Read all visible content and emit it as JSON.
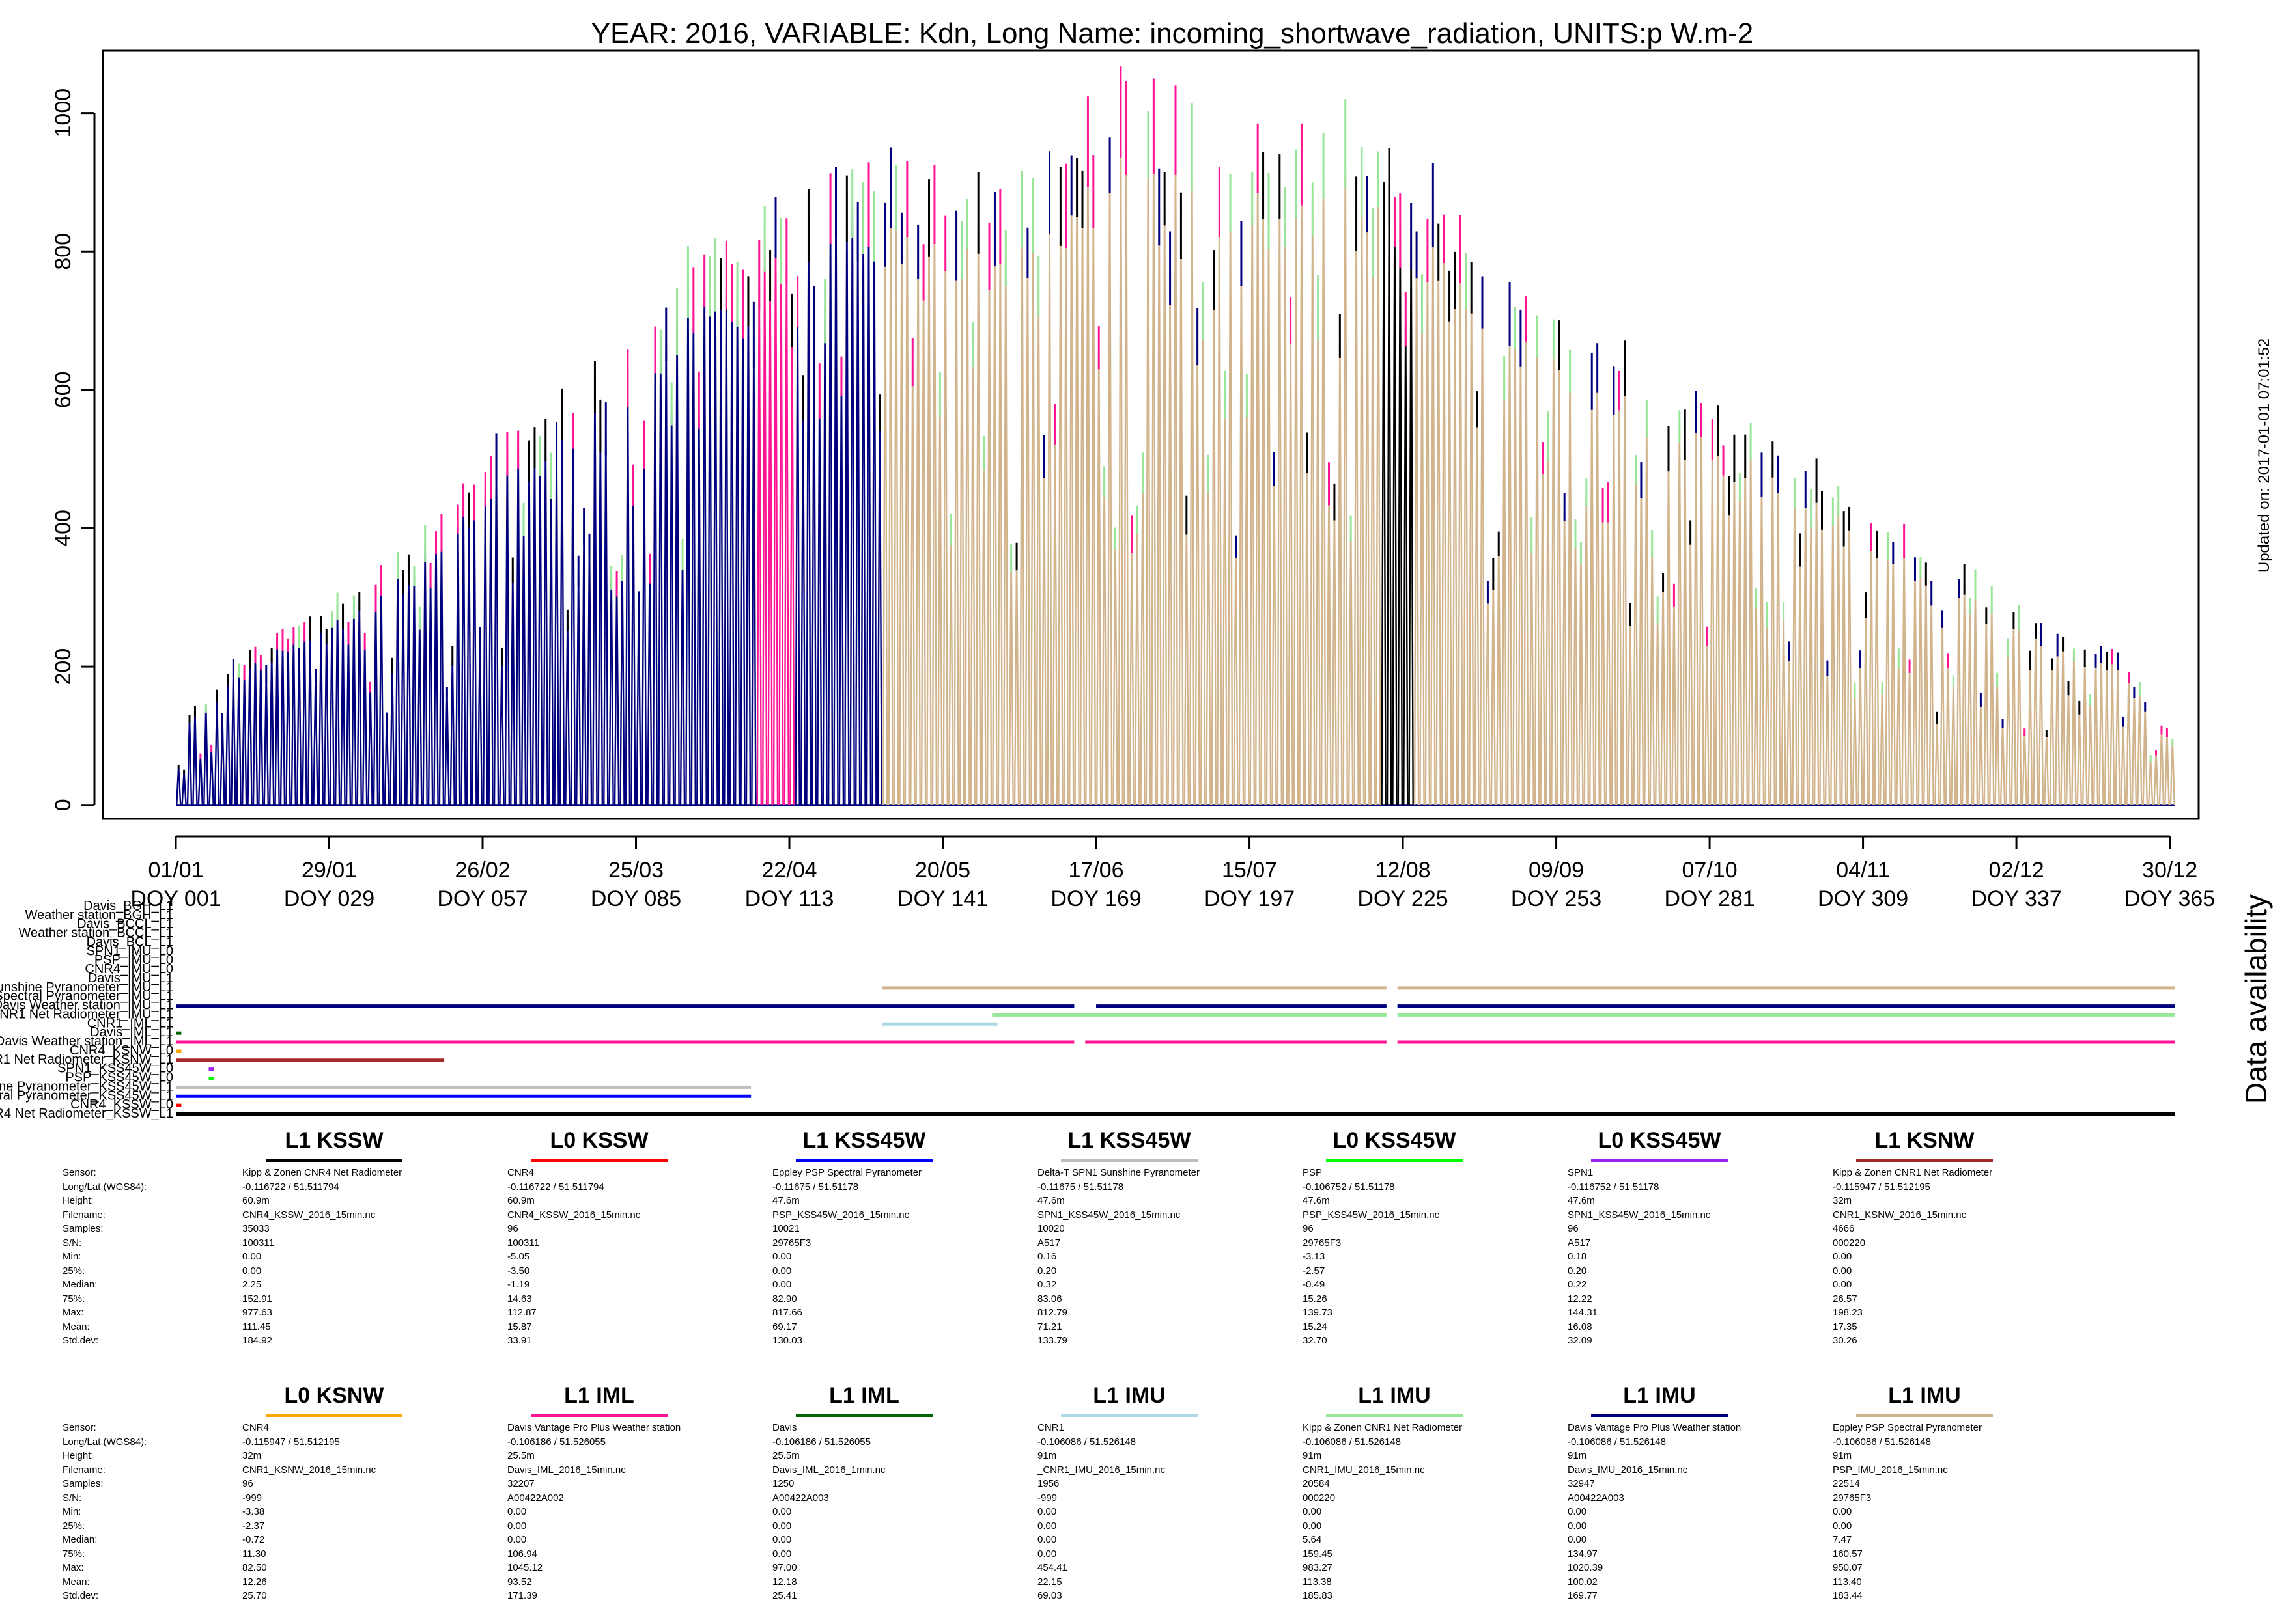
{
  "chart_data": {
    "type": "line",
    "title": "YEAR: 2016, VARIABLE: Kdn, Long Name: incoming_shortwave_radiation, UNITS:p W.m-2",
    "xlabel": "",
    "ylabel": "",
    "xlim": [
      1,
      366
    ],
    "ylim": [
      -20,
      1090
    ],
    "y_ticks": [
      0,
      200,
      400,
      600,
      800,
      1000
    ],
    "x_ticks": [
      {
        "doy": 1,
        "date": "01/01",
        "label": "DOY 001"
      },
      {
        "doy": 29,
        "date": "29/01",
        "label": "DOY 029"
      },
      {
        "doy": 57,
        "date": "26/02",
        "label": "DOY 057"
      },
      {
        "doy": 85,
        "date": "25/03",
        "label": "DOY 085"
      },
      {
        "doy": 113,
        "date": "22/04",
        "label": "DOY 113"
      },
      {
        "doy": 141,
        "date": "20/05",
        "label": "DOY 141"
      },
      {
        "doy": 169,
        "date": "17/06",
        "label": "DOY 169"
      },
      {
        "doy": 197,
        "date": "15/07",
        "label": "DOY 197"
      },
      {
        "doy": 225,
        "date": "12/08",
        "label": "DOY 225"
      },
      {
        "doy": 253,
        "date": "09/09",
        "label": "DOY 253"
      },
      {
        "doy": 281,
        "date": "07/10",
        "label": "DOY 281"
      },
      {
        "doy": 309,
        "date": "04/11",
        "label": "DOY 309"
      },
      {
        "doy": 337,
        "date": "02/12",
        "label": "DOY 337"
      },
      {
        "doy": 365,
        "date": "30/12",
        "label": "DOY 365"
      }
    ],
    "daily_peak_envelope": {
      "doy": [
        1,
        10,
        20,
        31,
        45,
        60,
        75,
        90,
        100,
        110,
        120,
        135,
        150,
        160,
        172,
        185,
        200,
        215,
        225,
        240,
        255,
        270,
        285,
        300,
        315,
        330,
        345,
        355,
        366
      ],
      "value": [
        110,
        200,
        250,
        300,
        380,
        520,
        620,
        740,
        820,
        860,
        920,
        910,
        880,
        900,
        1030,
        990,
        960,
        970,
        920,
        800,
        700,
        630,
        560,
        480,
        400,
        320,
        250,
        220,
        90
      ]
    },
    "series_color_phases": [
      {
        "from": 1,
        "to": 107,
        "color": "#00007f"
      },
      {
        "from": 107,
        "to": 114,
        "color": "#ff1493"
      },
      {
        "from": 114,
        "to": 130,
        "color": "#00007f"
      },
      {
        "from": 130,
        "to": 221,
        "color": "#d2b48c"
      },
      {
        "from": 221,
        "to": 227,
        "color": "#000000"
      },
      {
        "from": 227,
        "to": 366,
        "color": "#d2b48c"
      }
    ],
    "accent_colors": [
      "#ff1493",
      "#00007f",
      "#000000",
      "#98e698"
    ],
    "grid": false,
    "updated_on": "Updated on: 2017-01-01 07:01:52"
  },
  "availability": {
    "title": "Data availability",
    "rows": [
      {
        "label": "Davis_BGH_L1",
        "color": "#000000",
        "segments": []
      },
      {
        "label": "Weather station_BGH_L1",
        "color": "#000000",
        "segments": []
      },
      {
        "label": "Davis_BCCL_L1",
        "color": "#000000",
        "segments": []
      },
      {
        "label": "Weather station_BCCL_L1",
        "color": "#000000",
        "segments": []
      },
      {
        "label": "Davis_BCL_L1",
        "color": "#000000",
        "segments": []
      },
      {
        "label": "SPN1_IMU_L0",
        "color": "#000000",
        "segments": []
      },
      {
        "label": "PSP_IMU_L0",
        "color": "#000000",
        "segments": []
      },
      {
        "label": "CNR4_IMU_L0",
        "color": "#000000",
        "segments": []
      },
      {
        "label": "Davis_IMU_L1",
        "color": "#000000",
        "segments": []
      },
      {
        "label": "Sunshine Pyranometer_IMU_L1",
        "color": "#d2b48c",
        "segments": [
          [
            130,
            222
          ],
          [
            224,
            366
          ]
        ]
      },
      {
        "label": "Spectral Pyranometer_IMU_L1",
        "color": "#000000",
        "segments": []
      },
      {
        "label": "Davis Weather station_IMU_L1",
        "color": "#00007f",
        "segments": [
          [
            1,
            165
          ],
          [
            169,
            222
          ],
          [
            224,
            366
          ]
        ]
      },
      {
        "label": "CNR1 Net Radiometer_IMU_L1",
        "color": "#98e698",
        "segments": [
          [
            150,
            222
          ],
          [
            224,
            366
          ]
        ]
      },
      {
        "label": "CNR1_IML_L1",
        "color": "#add8e6",
        "segments": [
          [
            130,
            151
          ]
        ]
      },
      {
        "label": "Davis_IML_L1",
        "color": "#006400",
        "segments": [
          [
            1,
            2
          ]
        ]
      },
      {
        "label": "Davis Weather station_IML_L1",
        "color": "#ff1493",
        "segments": [
          [
            1,
            165
          ],
          [
            167,
            222
          ],
          [
            224,
            366
          ]
        ]
      },
      {
        "label": "CNR4_KSNW_L0",
        "color": "#ffa500",
        "segments": [
          [
            1,
            2
          ]
        ]
      },
      {
        "label": "CNR1 Net Radiometer_KSNW_L1",
        "color": "#a52a2a",
        "segments": [
          [
            1,
            50
          ]
        ]
      },
      {
        "label": "SPN1_KSS45W_L0",
        "color": "#a020f0",
        "segments": [
          [
            7,
            8
          ]
        ]
      },
      {
        "label": "PSP_KSS45W_L0",
        "color": "#00ff00",
        "segments": [
          [
            7,
            8
          ]
        ]
      },
      {
        "label": "Sunshine Pyranometer_KSS45W_L1",
        "color": "#bebebe",
        "segments": [
          [
            1,
            106
          ]
        ]
      },
      {
        "label": "Spectral Pyranometer_KSS45W_L1",
        "color": "#0000ff",
        "segments": [
          [
            1,
            106
          ]
        ]
      },
      {
        "label": "CNR4_KSSW_L0",
        "color": "#ff0000",
        "segments": [
          [
            1,
            2
          ]
        ]
      },
      {
        "label": "CNR4 Net Radiometer_KSSW_L1",
        "color": "#000000",
        "segments": [
          [
            1,
            366
          ]
        ]
      }
    ]
  },
  "stats": {
    "labels": [
      "Sensor:",
      "Long/Lat (WGS84):",
      "Height:",
      "Filename:",
      "Samples:",
      "S/N:",
      "Min:",
      "25%:",
      "Median:",
      "75%:",
      "Max:",
      "Mean:",
      "Std.dev:"
    ],
    "blocks": [
      {
        "title": "L1 KSSW",
        "color": "#000000",
        "values": [
          "Kipp & Zonen CNR4 Net Radiometer",
          "-0.116722 / 51.511794",
          "60.9m",
          "CNR4_KSSW_2016_15min.nc",
          "35033",
          "100311",
          "0.00",
          "0.00",
          "2.25",
          "152.91",
          "977.63",
          "111.45",
          "184.92"
        ]
      },
      {
        "title": "L0 KSSW",
        "color": "#ff0000",
        "values": [
          "CNR4",
          "-0.116722 / 51.511794",
          "60.9m",
          "CNR4_KSSW_2016_15min.nc",
          "96",
          "100311",
          "-5.05",
          "-3.50",
          "-1.19",
          "14.63",
          "112.87",
          "15.87",
          "33.91"
        ]
      },
      {
        "title": "L1 KSS45W",
        "color": "#0000ff",
        "values": [
          "Eppley PSP Spectral Pyranometer",
          "-0.11675 / 51.51178",
          "47.6m",
          "PSP_KSS45W_2016_15min.nc",
          "10021",
          "29765F3",
          "0.00",
          "0.00",
          "0.00",
          "82.90",
          "817.66",
          "69.17",
          "130.03"
        ]
      },
      {
        "title": "L1 KSS45W",
        "color": "#bebebe",
        "values": [
          "Delta-T SPN1 Sunshine Pyranometer",
          "-0.11675 / 51.51178",
          "47.6m",
          "SPN1_KSS45W_2016_15min.nc",
          "10020",
          "A517",
          "0.16",
          "0.20",
          "0.32",
          "83.06",
          "812.79",
          "71.21",
          "133.79"
        ]
      },
      {
        "title": "L0 KSS45W",
        "color": "#00ff00",
        "values": [
          "PSP",
          "-0.106752 / 51.51178",
          "47.6m",
          "PSP_KSS45W_2016_15min.nc",
          "96",
          "29765F3",
          "-3.13",
          "-2.57",
          "-0.49",
          "15.26",
          "139.73",
          "15.24",
          "32.70"
        ]
      },
      {
        "title": "L0 KSS45W",
        "color": "#a020f0",
        "values": [
          "SPN1",
          "-0.116752 / 51.51178",
          "47.6m",
          "SPN1_KSS45W_2016_15min.nc",
          "96",
          "A517",
          "0.18",
          "0.20",
          "0.22",
          "12.22",
          "144.31",
          "16.08",
          "32.09"
        ]
      },
      {
        "title": "L1 KSNW",
        "color": "#a52a2a",
        "values": [
          "Kipp & Zonen CNR1 Net Radiometer",
          "-0.115947 / 51.512195",
          "32m",
          "CNR1_KSNW_2016_15min.nc",
          "4666",
          "000220",
          "0.00",
          "0.00",
          "0.00",
          "26.57",
          "198.23",
          "17.35",
          "30.26"
        ]
      },
      {
        "title": "L0 KSNW",
        "color": "#ffa500",
        "values": [
          "CNR4",
          "-0.115947 / 51.512195",
          "32m",
          "CNR1_KSNW_2016_15min.nc",
          "96",
          "-999",
          "-3.38",
          "-2.37",
          "-0.72",
          "11.30",
          "82.50",
          "12.26",
          "25.70"
        ]
      },
      {
        "title": "L1 IML",
        "color": "#ff1493",
        "values": [
          "Davis Vantage Pro Plus Weather station",
          "-0.106186 / 51.526055",
          "25.5m",
          "Davis_IML_2016_15min.nc",
          "32207",
          "A00422A002",
          "0.00",
          "0.00",
          "0.00",
          "106.94",
          "1045.12",
          "93.52",
          "171.39"
        ]
      },
      {
        "title": "L1 IML",
        "color": "#006400",
        "values": [
          "Davis",
          "-0.106186 / 51.526055",
          "25.5m",
          "Davis_IML_2016_1min.nc",
          "1250",
          "A00422A003",
          "0.00",
          "0.00",
          "0.00",
          "0.00",
          "97.00",
          "12.18",
          "25.41"
        ]
      },
      {
        "title": "L1 IMU",
        "color": "#add8e6",
        "values": [
          "CNR1",
          "-0.106086 / 51.526148",
          "91m",
          "_CNR1_IMU_2016_15min.nc",
          "1956",
          "-999",
          "0.00",
          "0.00",
          "0.00",
          "0.00",
          "454.41",
          "22.15",
          "69.03"
        ]
      },
      {
        "title": "L1 IMU",
        "color": "#98e698",
        "values": [
          "Kipp & Zonen CNR1 Net Radiometer",
          "-0.106086 / 51.526148",
          "91m",
          "CNR1_IMU_2016_15min.nc",
          "20584",
          "000220",
          "0.00",
          "0.00",
          "5.64",
          "159.45",
          "983.27",
          "113.38",
          "185.83"
        ]
      },
      {
        "title": "L1 IMU",
        "color": "#00007f",
        "values": [
          "Davis Vantage Pro Plus Weather station",
          "-0.106086 / 51.526148",
          "91m",
          "Davis_IMU_2016_15min.nc",
          "32947",
          "A00422A003",
          "0.00",
          "0.00",
          "0.00",
          "134.97",
          "1020.39",
          "100.02",
          "169.77"
        ]
      },
      {
        "title": "L1 IMU",
        "color": "#d2b48c",
        "values": [
          "Eppley PSP Spectral Pyranometer",
          "-0.106086 / 51.526148",
          "91m",
          "PSP_IMU_2016_15min.nc",
          "22514",
          "29765F3",
          "0.00",
          "0.00",
          "7.47",
          "160.57",
          "950.07",
          "113.40",
          "183.44"
        ]
      }
    ]
  }
}
